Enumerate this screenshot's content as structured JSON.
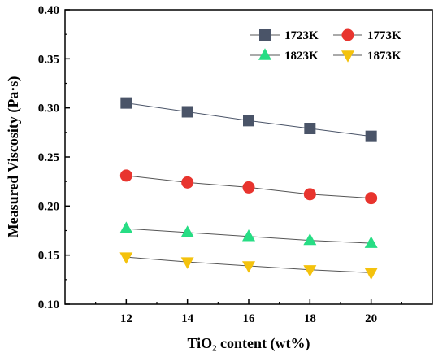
{
  "chart_data": {
    "type": "line",
    "xlabel": "TiO₂ content (wt%)",
    "ylabel": "Measured Viscosity (Pa·s)",
    "x": [
      12,
      14,
      16,
      18,
      20
    ],
    "xticks": [
      "12",
      "14",
      "16",
      "18",
      "20"
    ],
    "xlim": [
      10,
      22
    ],
    "ylim": [
      0.1,
      0.4
    ],
    "yticks": [
      "0.10",
      "0.15",
      "0.20",
      "0.25",
      "0.30",
      "0.35",
      "0.40"
    ],
    "grid": false,
    "legend": "top-right",
    "series": [
      {
        "name": "1723K",
        "values": [
          0.305,
          0.296,
          0.287,
          0.279,
          0.271
        ],
        "color": "#4a5468",
        "marker": "square"
      },
      {
        "name": "1773K",
        "values": [
          0.231,
          0.224,
          0.219,
          0.212,
          0.208
        ],
        "color": "#e8342e",
        "marker": "circle"
      },
      {
        "name": "1823K",
        "values": [
          0.177,
          0.173,
          0.169,
          0.165,
          0.162
        ],
        "color": "#27dd84",
        "marker": "triangle-up"
      },
      {
        "name": "1873K",
        "values": [
          0.148,
          0.143,
          0.139,
          0.135,
          0.132
        ],
        "color": "#f4c20d",
        "marker": "triangle-down"
      }
    ]
  }
}
